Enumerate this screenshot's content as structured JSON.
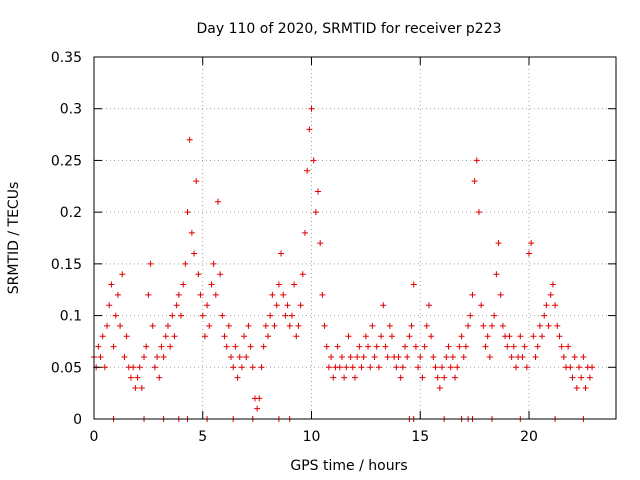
{
  "chart_data": {
    "type": "scatter",
    "title": "Day 110 of 2020, SRMTID for receiver p223",
    "xlabel": "GPS time / hours",
    "ylabel": "SRMTID / TECUs",
    "xlim": [
      0,
      24
    ],
    "ylim": [
      0,
      0.35
    ],
    "x_ticks": [
      {
        "value": 0,
        "label": "0"
      },
      {
        "value": 5,
        "label": "5"
      },
      {
        "value": 10,
        "label": "10"
      },
      {
        "value": 15,
        "label": "15"
      },
      {
        "value": 20,
        "label": "20"
      }
    ],
    "y_ticks": [
      {
        "value": 0,
        "label": "0"
      },
      {
        "value": 0.05,
        "label": "0.05"
      },
      {
        "value": 0.1,
        "label": "0.1"
      },
      {
        "value": 0.15,
        "label": "0.15"
      },
      {
        "value": 0.2,
        "label": "0.2"
      },
      {
        "value": 0.25,
        "label": "0.25"
      },
      {
        "value": 0.3,
        "label": "0.3"
      },
      {
        "value": 0.35,
        "label": "0.35"
      }
    ],
    "grid": true,
    "legend": "none",
    "marker": "+",
    "series": [
      {
        "name": "SRMTID",
        "color": "#e00000",
        "points": [
          [
            0.0,
            0.06
          ],
          [
            0.1,
            0.05
          ],
          [
            0.2,
            0.07
          ],
          [
            0.3,
            0.06
          ],
          [
            0.4,
            0.08
          ],
          [
            0.5,
            0.05
          ],
          [
            0.6,
            0.09
          ],
          [
            0.7,
            0.11
          ],
          [
            0.8,
            0.13
          ],
          [
            0.9,
            0.07
          ],
          [
            1.0,
            0.1
          ],
          [
            1.1,
            0.12
          ],
          [
            1.2,
            0.09
          ],
          [
            1.3,
            0.14
          ],
          [
            1.4,
            0.06
          ],
          [
            1.5,
            0.08
          ],
          [
            1.6,
            0.05
          ],
          [
            1.7,
            0.04
          ],
          [
            1.8,
            0.05
          ],
          [
            1.9,
            0.03
          ],
          [
            2.0,
            0.04
          ],
          [
            2.1,
            0.05
          ],
          [
            2.2,
            0.03
          ],
          [
            2.3,
            0.06
          ],
          [
            2.4,
            0.07
          ],
          [
            2.5,
            0.12
          ],
          [
            2.6,
            0.15
          ],
          [
            2.7,
            0.09
          ],
          [
            2.8,
            0.05
          ],
          [
            2.9,
            0.06
          ],
          [
            3.0,
            0.04
          ],
          [
            3.1,
            0.07
          ],
          [
            3.2,
            0.06
          ],
          [
            3.3,
            0.08
          ],
          [
            3.4,
            0.09
          ],
          [
            3.5,
            0.07
          ],
          [
            3.6,
            0.1
          ],
          [
            3.7,
            0.08
          ],
          [
            3.8,
            0.11
          ],
          [
            3.9,
            0.12
          ],
          [
            4.0,
            0.1
          ],
          [
            4.1,
            0.13
          ],
          [
            4.2,
            0.15
          ],
          [
            4.3,
            0.2
          ],
          [
            4.4,
            0.27
          ],
          [
            4.5,
            0.18
          ],
          [
            4.6,
            0.16
          ],
          [
            4.7,
            0.23
          ],
          [
            4.8,
            0.14
          ],
          [
            4.9,
            0.12
          ],
          [
            5.0,
            0.1
          ],
          [
            5.1,
            0.08
          ],
          [
            5.2,
            0.11
          ],
          [
            5.3,
            0.09
          ],
          [
            5.4,
            0.13
          ],
          [
            5.5,
            0.15
          ],
          [
            5.6,
            0.12
          ],
          [
            5.7,
            0.21
          ],
          [
            5.8,
            0.14
          ],
          [
            5.9,
            0.1
          ],
          [
            6.0,
            0.08
          ],
          [
            6.1,
            0.07
          ],
          [
            6.2,
            0.09
          ],
          [
            6.3,
            0.06
          ],
          [
            6.4,
            0.05
          ],
          [
            6.5,
            0.07
          ],
          [
            6.6,
            0.04
          ],
          [
            6.7,
            0.06
          ],
          [
            6.8,
            0.05
          ],
          [
            6.9,
            0.08
          ],
          [
            7.0,
            0.06
          ],
          [
            7.1,
            0.09
          ],
          [
            7.2,
            0.07
          ],
          [
            7.3,
            0.05
          ],
          [
            7.4,
            0.02
          ],
          [
            7.5,
            0.01
          ],
          [
            7.6,
            0.02
          ],
          [
            7.7,
            0.05
          ],
          [
            7.8,
            0.07
          ],
          [
            7.9,
            0.09
          ],
          [
            8.0,
            0.08
          ],
          [
            8.1,
            0.1
          ],
          [
            8.2,
            0.12
          ],
          [
            8.3,
            0.09
          ],
          [
            8.4,
            0.11
          ],
          [
            8.5,
            0.13
          ],
          [
            8.6,
            0.16
          ],
          [
            8.7,
            0.12
          ],
          [
            8.8,
            0.1
          ],
          [
            8.9,
            0.11
          ],
          [
            9.0,
            0.09
          ],
          [
            9.1,
            0.1
          ],
          [
            9.2,
            0.13
          ],
          [
            9.3,
            0.08
          ],
          [
            9.4,
            0.09
          ],
          [
            9.5,
            0.11
          ],
          [
            9.6,
            0.14
          ],
          [
            9.7,
            0.18
          ],
          [
            9.8,
            0.24
          ],
          [
            9.9,
            0.28
          ],
          [
            10.0,
            0.3
          ],
          [
            10.1,
            0.25
          ],
          [
            10.2,
            0.2
          ],
          [
            10.3,
            0.22
          ],
          [
            10.4,
            0.17
          ],
          [
            10.5,
            0.12
          ],
          [
            10.6,
            0.09
          ],
          [
            10.7,
            0.07
          ],
          [
            10.8,
            0.05
          ],
          [
            10.9,
            0.06
          ],
          [
            11.0,
            0.04
          ],
          [
            11.1,
            0.05
          ],
          [
            11.2,
            0.07
          ],
          [
            11.3,
            0.05
          ],
          [
            11.4,
            0.06
          ],
          [
            11.5,
            0.04
          ],
          [
            11.6,
            0.05
          ],
          [
            11.7,
            0.08
          ],
          [
            11.8,
            0.06
          ],
          [
            11.9,
            0.05
          ],
          [
            12.0,
            0.04
          ],
          [
            12.1,
            0.06
          ],
          [
            12.2,
            0.07
          ],
          [
            12.3,
            0.05
          ],
          [
            12.4,
            0.06
          ],
          [
            12.5,
            0.08
          ],
          [
            12.6,
            0.07
          ],
          [
            12.7,
            0.05
          ],
          [
            12.8,
            0.09
          ],
          [
            12.9,
            0.06
          ],
          [
            13.0,
            0.07
          ],
          [
            13.1,
            0.05
          ],
          [
            13.2,
            0.08
          ],
          [
            13.3,
            0.11
          ],
          [
            13.4,
            0.07
          ],
          [
            13.5,
            0.06
          ],
          [
            13.6,
            0.09
          ],
          [
            13.7,
            0.08
          ],
          [
            13.8,
            0.06
          ],
          [
            13.9,
            0.05
          ],
          [
            14.0,
            0.06
          ],
          [
            14.1,
            0.04
          ],
          [
            14.2,
            0.05
          ],
          [
            14.3,
            0.07
          ],
          [
            14.4,
            0.06
          ],
          [
            14.5,
            0.08
          ],
          [
            14.6,
            0.09
          ],
          [
            14.7,
            0.13
          ],
          [
            14.8,
            0.07
          ],
          [
            14.9,
            0.05
          ],
          [
            15.0,
            0.06
          ],
          [
            15.1,
            0.04
          ],
          [
            15.2,
            0.07
          ],
          [
            15.3,
            0.09
          ],
          [
            15.4,
            0.11
          ],
          [
            15.5,
            0.08
          ],
          [
            15.6,
            0.06
          ],
          [
            15.7,
            0.05
          ],
          [
            15.8,
            0.04
          ],
          [
            15.9,
            0.03
          ],
          [
            16.0,
            0.05
          ],
          [
            16.1,
            0.04
          ],
          [
            16.2,
            0.06
          ],
          [
            16.3,
            0.07
          ],
          [
            16.4,
            0.05
          ],
          [
            16.5,
            0.06
          ],
          [
            16.6,
            0.04
          ],
          [
            16.7,
            0.05
          ],
          [
            16.8,
            0.07
          ],
          [
            16.9,
            0.08
          ],
          [
            17.0,
            0.06
          ],
          [
            17.1,
            0.07
          ],
          [
            17.2,
            0.09
          ],
          [
            17.3,
            0.1
          ],
          [
            17.4,
            0.12
          ],
          [
            17.5,
            0.23
          ],
          [
            17.6,
            0.25
          ],
          [
            17.7,
            0.2
          ],
          [
            17.8,
            0.11
          ],
          [
            17.9,
            0.09
          ],
          [
            18.0,
            0.07
          ],
          [
            18.1,
            0.08
          ],
          [
            18.2,
            0.06
          ],
          [
            18.3,
            0.09
          ],
          [
            18.4,
            0.1
          ],
          [
            18.5,
            0.14
          ],
          [
            18.6,
            0.17
          ],
          [
            18.7,
            0.12
          ],
          [
            18.8,
            0.09
          ],
          [
            18.9,
            0.08
          ],
          [
            19.0,
            0.07
          ],
          [
            19.1,
            0.08
          ],
          [
            19.2,
            0.06
          ],
          [
            19.3,
            0.07
          ],
          [
            19.4,
            0.05
          ],
          [
            19.5,
            0.06
          ],
          [
            19.6,
            0.08
          ],
          [
            19.7,
            0.06
          ],
          [
            19.8,
            0.07
          ],
          [
            19.9,
            0.05
          ],
          [
            20.0,
            0.16
          ],
          [
            20.1,
            0.17
          ],
          [
            20.2,
            0.08
          ],
          [
            20.3,
            0.06
          ],
          [
            20.4,
            0.07
          ],
          [
            20.5,
            0.09
          ],
          [
            20.6,
            0.08
          ],
          [
            20.7,
            0.1
          ],
          [
            20.8,
            0.11
          ],
          [
            20.9,
            0.09
          ],
          [
            21.0,
            0.12
          ],
          [
            21.1,
            0.13
          ],
          [
            21.2,
            0.11
          ],
          [
            21.3,
            0.09
          ],
          [
            21.4,
            0.08
          ],
          [
            21.5,
            0.07
          ],
          [
            21.6,
            0.06
          ],
          [
            21.7,
            0.05
          ],
          [
            21.8,
            0.07
          ],
          [
            21.9,
            0.05
          ],
          [
            22.0,
            0.04
          ],
          [
            22.1,
            0.06
          ],
          [
            22.2,
            0.03
          ],
          [
            22.3,
            0.05
          ],
          [
            22.4,
            0.04
          ],
          [
            22.5,
            0.06
          ],
          [
            22.6,
            0.03
          ],
          [
            22.7,
            0.05
          ],
          [
            22.8,
            0.04
          ],
          [
            22.9,
            0.05
          ],
          [
            0.9,
            0.0
          ],
          [
            2.3,
            0.0
          ],
          [
            3.2,
            0.0
          ],
          [
            3.9,
            0.0
          ],
          [
            4.3,
            0.0
          ],
          [
            5.2,
            0.0
          ],
          [
            6.4,
            0.0
          ],
          [
            7.3,
            0.0
          ],
          [
            8.5,
            0.0
          ],
          [
            9.0,
            0.0
          ],
          [
            14.5,
            0.0
          ],
          [
            14.7,
            0.0
          ],
          [
            16.1,
            0.0
          ],
          [
            16.9,
            0.0
          ],
          [
            17.2,
            0.0
          ],
          [
            17.4,
            0.0
          ],
          [
            18.3,
            0.0
          ],
          [
            19.6,
            0.0
          ],
          [
            21.2,
            0.0
          ],
          [
            22.5,
            0.0
          ]
        ]
      }
    ]
  }
}
